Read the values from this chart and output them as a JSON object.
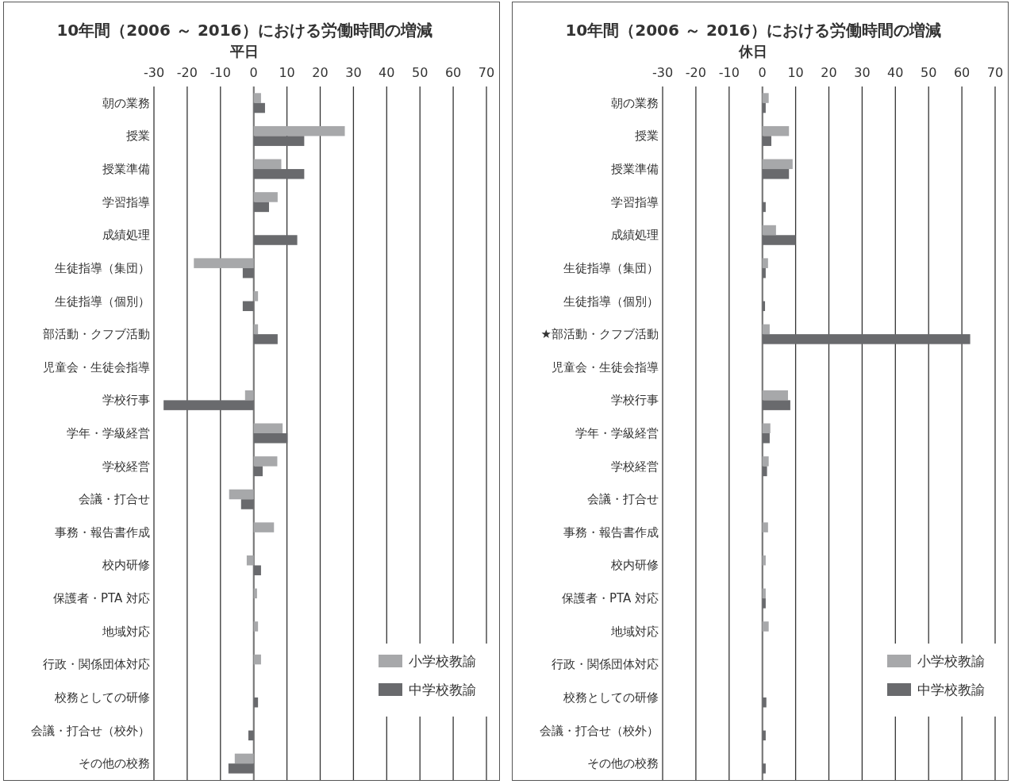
{
  "chart_data": [
    {
      "type": "bar",
      "orientation": "horizontal",
      "title": "10年間（2006 ～ 2016）における労働時間の増減",
      "subtitle": "平日",
      "categories": [
        "朝の業務",
        "授業",
        "授業準備",
        "学習指導",
        "成績処理",
        "生徒指導（集団）",
        "生徒指導（個別）",
        "部活動・クフブ活動",
        "児童会・生徒会指導",
        "学校行事",
        "学年・学級経営",
        "学校経営",
        "会議・打合せ",
        "事務・報告書作成",
        "校内研修",
        "保護者・PTA 対応",
        "地域対応",
        "行政・関係団体対応",
        "校務としての研修",
        "会議・打合せ（校外）",
        "その他の校務"
      ],
      "series": [
        {
          "name": "小学校教諭",
          "color": "#a7a8aa",
          "values": [
            2.2,
            27.4,
            8.3,
            7.2,
            null,
            -18.0,
            1.3,
            1.3,
            null,
            -2.6,
            8.7,
            7.1,
            -7.4,
            6.1,
            -2.1,
            1.0,
            1.3,
            2.2,
            null,
            null,
            -5.7
          ]
        },
        {
          "name": "中学校教諭",
          "color": "#696a6d",
          "values": [
            3.4,
            15.2,
            15.2,
            4.6,
            13.1,
            -3.3,
            -3.3,
            7.2,
            null,
            -27.1,
            10.2,
            2.7,
            -3.8,
            null,
            2.2,
            null,
            null,
            null,
            1.3,
            -1.6,
            -7.6
          ]
        }
      ],
      "xlim": [
        -30,
        70
      ],
      "xticks": [
        -30,
        -20,
        -10,
        0,
        10,
        20,
        30,
        40,
        50,
        60,
        70
      ],
      "grid": "x",
      "legend": "bottom right"
    },
    {
      "type": "bar",
      "orientation": "horizontal",
      "title": "10年間（2006 ～ 2016）における労働時間の増減",
      "subtitle": "休日",
      "categories": [
        "朝の業務",
        "授業",
        "授業準備",
        "学習指導",
        "成績処理",
        "生徒指導（集団）",
        "生徒指導（個別）",
        "★部活動・クフブ活動",
        "児童会・生徒会指導",
        "学校行事",
        "学年・学級経営",
        "学校経営",
        "会議・打合せ",
        "事務・報告書作成",
        "校内研修",
        "保護者・PTA 対応",
        "地域対応",
        "行政・関係団体対応",
        "校務としての研修",
        "会議・打合せ（校外）",
        "その他の校務"
      ],
      "series": [
        {
          "name": "小学校教諭",
          "color": "#a7a8aa",
          "values": [
            1.9,
            8.0,
            9.1,
            null,
            4.1,
            1.7,
            null,
            2.2,
            null,
            7.7,
            2.4,
            1.9,
            null,
            1.7,
            1.0,
            1.0,
            1.9,
            null,
            null,
            null,
            null
          ]
        },
        {
          "name": "中学校教諭",
          "color": "#696a6d",
          "values": [
            1.0,
            2.7,
            8.0,
            1.0,
            10.0,
            1.0,
            0.8,
            62.5,
            null,
            8.4,
            2.2,
            1.4,
            null,
            null,
            null,
            1.0,
            null,
            null,
            1.2,
            1.0,
            1.0
          ]
        }
      ],
      "xlim": [
        -30,
        70
      ],
      "xticks": [
        -30,
        -20,
        -10,
        0,
        10,
        20,
        30,
        40,
        50,
        60,
        70
      ],
      "grid": "x",
      "legend": "bottom right"
    }
  ]
}
